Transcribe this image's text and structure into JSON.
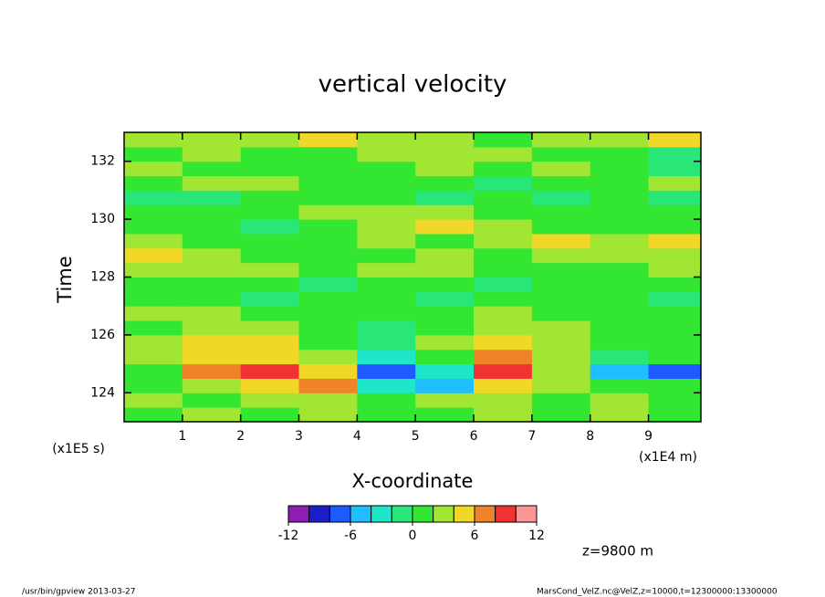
{
  "chart_data": {
    "type": "heatmap",
    "title": "vertical velocity",
    "xlabel": "X-coordinate",
    "ylabel": "Time",
    "xunit": "(x1E4 m)",
    "yunit": "(x1E5 s)",
    "annotation": "z=9800 m",
    "footer_left": "/usr/bin/gpview  2013-03-27",
    "footer_right": "MarsCond_VelZ.nc@VelZ,z=10000,t=12300000:13300000",
    "x": [
      0.5,
      1.5,
      2.5,
      3.5,
      4.5,
      5.5,
      6.5,
      7.5,
      8.5,
      9.5
    ],
    "y": [
      123.25,
      123.75,
      124.25,
      124.75,
      125.25,
      125.75,
      126.25,
      126.75,
      127.25,
      127.75,
      128.25,
      128.75,
      129.25,
      129.75,
      130.25,
      130.75,
      131.25,
      131.75,
      132.25,
      132.75
    ],
    "z": [
      [
        1,
        2,
        1,
        3,
        1,
        0,
        2,
        1,
        3,
        1
      ],
      [
        2,
        1,
        3,
        2,
        1,
        2,
        3,
        1,
        2,
        1
      ],
      [
        0,
        3,
        5,
        7,
        -3,
        -5,
        4,
        3,
        1,
        0
      ],
      [
        1,
        7,
        9,
        4,
        -7,
        -3,
        9,
        3,
        -5,
        -7
      ],
      [
        3,
        5,
        5,
        2,
        -3,
        1,
        7,
        2,
        -1,
        1
      ],
      [
        2,
        5,
        4,
        1,
        -1,
        2,
        5,
        3,
        0,
        1
      ],
      [
        1,
        3,
        3,
        0,
        -1,
        1,
        3,
        2,
        1,
        0
      ],
      [
        2,
        2,
        1,
        1,
        0,
        1,
        2,
        1,
        0,
        1
      ],
      [
        1,
        0,
        -1,
        1,
        0,
        -1,
        1,
        0,
        1,
        -1
      ],
      [
        0,
        1,
        0,
        -1,
        1,
        0,
        -1,
        1,
        0,
        1
      ],
      [
        3,
        2,
        3,
        1,
        2,
        3,
        1,
        0,
        1,
        2
      ],
      [
        4,
        3,
        1,
        0,
        1,
        2,
        1,
        2,
        3,
        2
      ],
      [
        2,
        1,
        0,
        1,
        2,
        1,
        3,
        4,
        3,
        4
      ],
      [
        0,
        1,
        -1,
        1,
        3,
        4,
        2,
        1,
        1,
        0
      ],
      [
        1,
        0,
        1,
        2,
        3,
        2,
        0,
        1,
        0,
        1
      ],
      [
        -1,
        -2,
        0,
        1,
        0,
        -1,
        0,
        -1,
        1,
        -1
      ],
      [
        1,
        2,
        3,
        1,
        0,
        1,
        -1,
        0,
        1,
        2
      ],
      [
        2,
        1,
        1,
        0,
        1,
        2,
        1,
        3,
        1,
        -1
      ],
      [
        1,
        2,
        0,
        1,
        3,
        2,
        2,
        1,
        0,
        -1
      ],
      [
        3,
        2,
        3,
        4,
        3,
        2,
        1,
        2,
        3,
        4
      ]
    ],
    "xlim": [
      0,
      9.9
    ],
    "ylim": [
      123,
      133
    ],
    "xticks": [
      1,
      2,
      3,
      4,
      5,
      6,
      7,
      8,
      9
    ],
    "yticks": [
      124,
      126,
      128,
      130,
      132
    ],
    "clim": [
      -12,
      12
    ],
    "cticks": [
      -12,
      -6,
      0,
      6,
      12
    ],
    "levels": [
      -12,
      -10,
      -8,
      -6,
      -4,
      -2,
      0,
      2,
      4,
      6,
      8,
      10,
      12
    ],
    "colors": [
      "#8c1eb4",
      "#1e1ec8",
      "#1e5aff",
      "#1ebeff",
      "#1ee6c8",
      "#28e678",
      "#32e632",
      "#a0e632",
      "#f0d728",
      "#f08228",
      "#f03232",
      "#fa9696"
    ]
  }
}
